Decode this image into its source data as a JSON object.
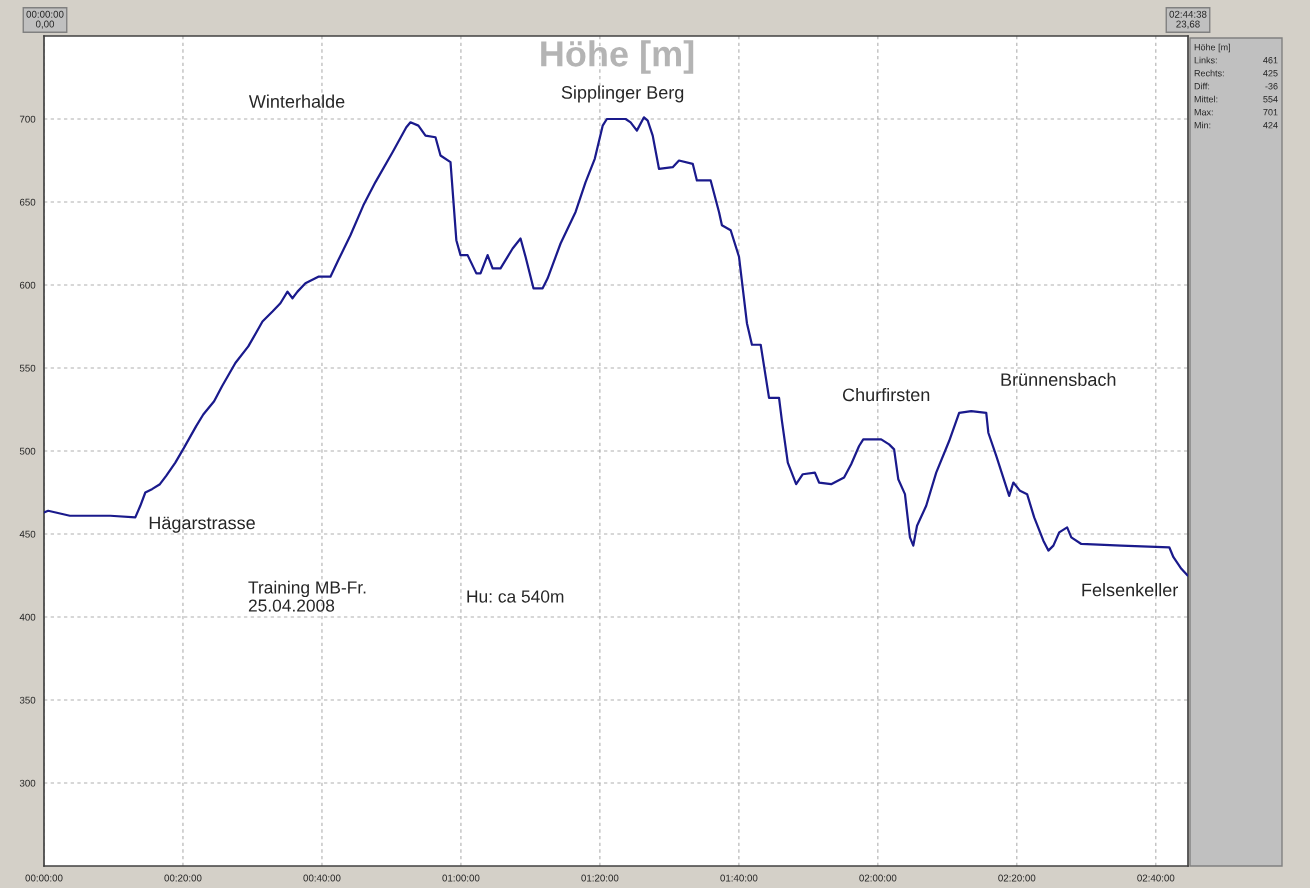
{
  "chart_data": {
    "type": "line",
    "title": "Höhe [m]",
    "x": [
      0,
      0.01,
      0.062,
      0.159,
      0.219,
      0.231,
      0.243,
      0.259,
      0.278,
      0.293,
      0.315,
      0.336,
      0.365,
      0.382,
      0.408,
      0.427,
      0.459,
      0.49,
      0.524,
      0.548,
      0.567,
      0.584,
      0.596,
      0.608,
      0.627,
      0.658,
      0.687,
      0.706,
      0.735,
      0.766,
      0.795,
      0.836,
      0.869,
      0.879,
      0.898,
      0.915,
      0.939,
      0.951,
      0.975,
      0.989,
      0.999,
      1.016,
      1.037,
      1.047,
      1.064,
      1.076,
      1.095,
      1.124,
      1.143,
      1.155,
      1.174,
      1.196,
      1.208,
      1.239,
      1.275,
      1.299,
      1.321,
      1.34,
      1.35,
      1.395,
      1.407,
      1.422,
      1.439,
      1.448,
      1.46,
      1.475,
      1.508,
      1.523,
      1.556,
      1.566,
      1.599,
      1.619,
      1.626,
      1.647,
      1.667,
      1.686,
      1.698,
      1.719,
      1.739,
      1.763,
      1.77,
      1.784,
      1.804,
      1.82,
      1.849,
      1.859,
      1.888,
      1.919,
      1.936,
      1.955,
      1.965,
      2.008,
      2.027,
      2.039,
      2.049,
      2.065,
      2.077,
      2.085,
      2.094,
      2.116,
      2.14,
      2.171,
      2.195,
      2.224,
      2.26,
      2.265,
      2.284,
      2.315,
      2.325,
      2.341,
      2.358,
      2.375,
      2.397,
      2.409,
      2.421,
      2.435,
      2.454,
      2.464,
      2.488,
      2.584,
      2.699,
      2.709,
      2.728,
      2.743
    ],
    "series": [
      {
        "color": "#1a1a8c",
        "values": [
          463,
          464,
          461,
          461,
          460,
          467,
          475,
          477,
          480,
          485,
          493,
          502,
          515,
          522,
          530,
          539,
          553,
          563,
          578,
          584,
          589,
          596,
          592,
          596,
          601,
          605,
          605,
          615,
          630,
          648,
          662,
          680,
          695,
          698,
          696,
          690,
          689,
          678,
          674,
          627,
          618,
          618,
          607,
          607,
          618,
          610,
          610,
          622,
          628,
          617,
          598,
          598,
          604,
          625,
          644,
          662,
          676,
          696,
          700,
          700,
          698,
          693,
          701,
          699,
          690,
          670,
          671,
          675,
          673,
          663,
          663,
          644,
          636,
          633,
          617,
          577,
          564,
          564,
          532,
          532,
          518,
          493,
          480,
          486,
          487,
          481,
          480,
          484,
          492,
          503,
          507,
          507,
          504,
          501,
          483,
          474,
          448,
          443,
          455,
          467,
          487,
          506,
          523,
          524,
          523,
          511,
          497,
          473,
          481,
          476,
          474,
          460,
          446,
          440,
          443,
          451,
          454,
          448,
          444,
          443,
          442,
          436,
          429,
          425
        ]
      }
    ],
    "xlim": [
      0,
      2.7439
    ],
    "ylim": [
      250,
      750
    ],
    "xticks": [
      {
        "value": 0,
        "label": "00:00:00"
      },
      {
        "value": 0.3333,
        "label": "00:20:00"
      },
      {
        "value": 0.6667,
        "label": "00:40:00"
      },
      {
        "value": 1,
        "label": "01:00:00"
      },
      {
        "value": 1.3333,
        "label": "01:20:00"
      },
      {
        "value": 1.6667,
        "label": "01:40:00"
      },
      {
        "value": 2,
        "label": "02:00:00"
      },
      {
        "value": 2.3333,
        "label": "02:20:00"
      },
      {
        "value": 2.6667,
        "label": "02:40:00"
      }
    ],
    "yticks": [
      {
        "value": 300,
        "label": "300"
      },
      {
        "value": 350,
        "label": "350"
      },
      {
        "value": 400,
        "label": "400"
      },
      {
        "value": 450,
        "label": "450"
      },
      {
        "value": 500,
        "label": "500"
      },
      {
        "value": 550,
        "label": "550"
      },
      {
        "value": 600,
        "label": "600"
      },
      {
        "value": 650,
        "label": "650"
      },
      {
        "value": 700,
        "label": "700"
      }
    ],
    "grid": true,
    "marker": "none",
    "line_style": "solid",
    "annotations": [
      "00:00:00\n0,00",
      "02:44:38\n23,68",
      "Höhe [m]",
      "Links: 461",
      "Rechts: 425",
      "Diff: -36",
      "Mittel: 554",
      "Max: 701",
      "Min: 424",
      "Training MB-Fr.\n25.04.2008",
      "Hu: ca 540m",
      "Winterhalde",
      {
        "text": "Hägarstrasse",
        "x": 0.219,
        "y": 460
      },
      {
        "text": "Sipplinger Berg",
        "x": 1.395,
        "y": 700
      },
      {
        "text": "Churfirsten",
        "x": 2.008,
        "y": 507
      },
      {
        "text": "Brünnensbach",
        "x": 2.224,
        "y": 524
      },
      {
        "text": "Felsenkeller",
        "x": 2.743,
        "y": 425
      }
    ]
  }
}
